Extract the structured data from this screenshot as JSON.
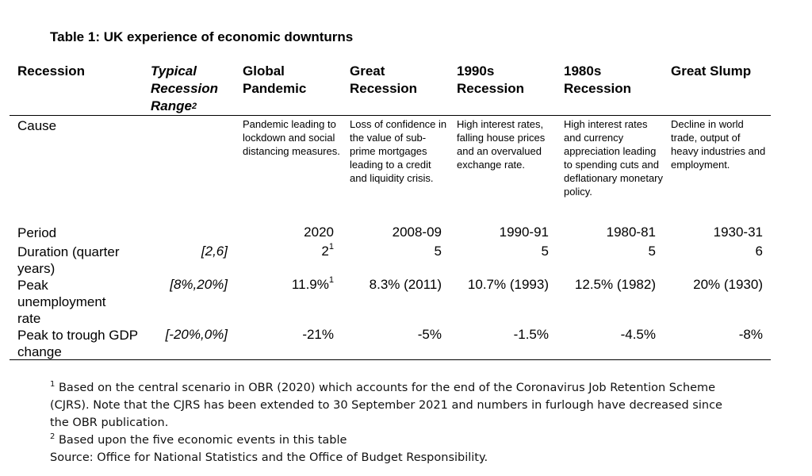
{
  "title": "Table 1: UK experience of economic downturns",
  "columns": {
    "recession": "Recession",
    "typical_line1": "Typical",
    "typical_line2": "Recession",
    "typical_line3": "Range",
    "typical_sup": "2",
    "pandemic_line1": "Global",
    "pandemic_line2": "Pandemic",
    "great_rec_line1": "Great",
    "great_rec_line2": "Recession",
    "r1990_line1": "1990s",
    "r1990_line2": "Recession",
    "r1980_line1": "1980s",
    "r1980_line2": "Recession",
    "slump": "Great Slump"
  },
  "rows": {
    "cause": {
      "label": "Cause",
      "pandemic": "Pandemic leading to lockdown and social distancing measures.",
      "great_rec": "Loss of confidence in the value of sub-prime mortgages leading to a credit and liquidity crisis.",
      "r1990": "High interest rates, falling house prices and an overvalued exchange rate.",
      "r1980": "High interest rates and currency appreciation leading to spending cuts and deflationary monetary policy.",
      "slump": "Decline in world trade, output of heavy industries and employment."
    },
    "period": {
      "label": "Period",
      "pandemic": "2020",
      "great_rec": "2008-09",
      "r1990": "1990-91",
      "r1980": "1980-81",
      "slump": "1930-31"
    },
    "duration": {
      "label": "Duration (quarter years)",
      "typical": "[2,6]",
      "pandemic": "2",
      "pandemic_sup": "1",
      "great_rec": "5",
      "r1990": "5",
      "r1980": "5",
      "slump": "6"
    },
    "unemployment": {
      "label": "Peak unemployment rate",
      "typical": "[8%,20%]",
      "pandemic": "11.9%",
      "pandemic_sup": "1",
      "great_rec": "8.3% (2011)",
      "r1990": "10.7% (1993)",
      "r1980": "12.5% (1982)",
      "slump": "20% (1930)"
    },
    "gdp": {
      "label": "Peak to trough GDP change",
      "typical": "[-20%,0%]",
      "pandemic": "-21%",
      "great_rec": "-5%",
      "r1990": "-1.5%",
      "r1980": "-4.5%",
      "slump": "-8%"
    }
  },
  "footnotes": {
    "note1_marker": "1",
    "note1": "Based on the central scenario in OBR (2020) which accounts for the end of the Coronavirus Job Retention Scheme (CJRS). Note that the CJRS has been extended to 30 September 2021 and numbers in furlough have decreased since the OBR publication.",
    "note2_marker": "2",
    "note2": "Based upon the five economic events in this table",
    "source": "Source: Office for National Statistics and the Office of Budget Responsibility."
  }
}
